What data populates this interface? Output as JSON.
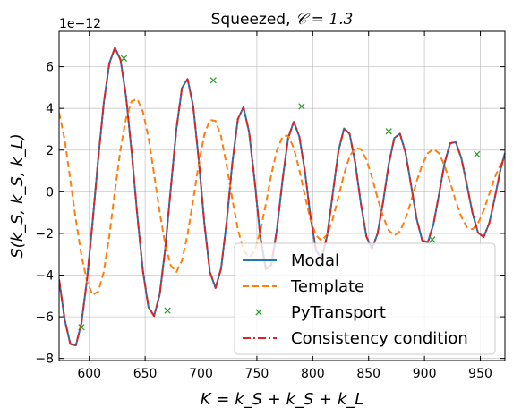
{
  "chart_data": {
    "type": "line",
    "title": "Squeezed, 𝒞 = 1.3",
    "title_prefix": "Squeezed, ",
    "title_math": "𝒞 = 1.3",
    "xlabel": "K = k_S + k_S + k_L",
    "ylabel": "S(k_S, k_S, k_L)",
    "y_offset_text": "1e−12",
    "xlim": [
      573,
      972
    ],
    "ylim": [
      -8.1,
      7.7
    ],
    "xticks": [
      600,
      650,
      700,
      750,
      800,
      850,
      900,
      950
    ],
    "yticks": [
      -8,
      -6,
      -4,
      -2,
      0,
      2,
      4,
      6
    ],
    "grid": true,
    "legend_position": "lower-right",
    "series": [
      {
        "name": "Modal",
        "color": "#1f77b4",
        "style": "solid",
        "x": [
          573,
          578,
          583,
          588,
          593,
          598,
          603,
          608,
          613,
          618,
          623,
          628,
          633,
          638,
          643,
          648,
          653,
          658,
          663,
          668,
          673,
          678,
          683,
          688,
          693,
          698,
          703,
          708,
          713,
          718,
          723,
          728,
          733,
          738,
          743,
          748,
          753,
          758,
          763,
          768,
          773,
          778,
          783,
          788,
          793,
          798,
          803,
          808,
          813,
          818,
          823,
          828,
          833,
          838,
          843,
          848,
          853,
          858,
          863,
          868,
          873,
          878,
          883,
          888,
          893,
          898,
          903,
          908,
          913,
          918,
          923,
          928,
          933,
          938,
          943,
          948,
          953,
          958,
          963,
          968,
          972
        ],
        "y": [
          -4.21,
          -6.13,
          -7.3,
          -7.38,
          -6.31,
          -4.22,
          -1.44,
          1.56,
          4.26,
          6.17,
          6.91,
          6.33,
          4.54,
          1.87,
          -1.12,
          -3.79,
          -5.54,
          -5.96,
          -4.95,
          -2.74,
          0.18,
          3.01,
          4.99,
          5.41,
          4.12,
          1.52,
          -1.51,
          -3.86,
          -4.62,
          -3.68,
          -1.43,
          1.36,
          3.49,
          4.06,
          2.88,
          0.54,
          -2.12,
          -3.72,
          -3.51,
          -1.78,
          0.58,
          2.58,
          3.36,
          2.65,
          0.97,
          -1.18,
          -2.84,
          -3.19,
          -2.08,
          -0.05,
          1.95,
          3.04,
          2.78,
          1.4,
          -0.54,
          -2.15,
          -2.73,
          -2.02,
          -0.48,
          1.32,
          2.58,
          2.79,
          1.89,
          0.32,
          -1.31,
          -2.34,
          -2.42,
          -1.57,
          -0.12,
          1.38,
          2.33,
          2.38,
          1.61,
          0.33,
          -1.03,
          -1.98,
          -2.17,
          -1.5,
          -0.27,
          1.06,
          1.86
        ]
      },
      {
        "name": "Template",
        "color": "#ff7f0e",
        "style": "dashed",
        "x": [
          573,
          578,
          583,
          588,
          593,
          598,
          603,
          608,
          613,
          618,
          623,
          628,
          633,
          638,
          643,
          648,
          653,
          658,
          663,
          668,
          673,
          678,
          683,
          688,
          693,
          698,
          703,
          708,
          713,
          718,
          723,
          728,
          733,
          738,
          743,
          748,
          753,
          758,
          763,
          768,
          773,
          778,
          783,
          788,
          793,
          798,
          803,
          808,
          813,
          818,
          823,
          828,
          833,
          838,
          843,
          848,
          853,
          858,
          863,
          868,
          873,
          878,
          883,
          888,
          893,
          898,
          903,
          908,
          913,
          918,
          923,
          928,
          933,
          938,
          943,
          948,
          953,
          958,
          963,
          968,
          972
        ],
        "y": [
          3.8,
          2.5,
          0.6,
          -1.35,
          -3.05,
          -4.3,
          -4.95,
          -4.8,
          -3.85,
          -2.1,
          0.05,
          2.05,
          3.55,
          4.35,
          4.45,
          3.85,
          2.6,
          0.85,
          -0.95,
          -2.55,
          -3.55,
          -3.85,
          -3.3,
          -2.05,
          -0.4,
          1.35,
          2.75,
          3.45,
          3.4,
          2.65,
          1.25,
          -0.35,
          -1.8,
          -2.8,
          -3.15,
          -2.85,
          -1.9,
          -0.6,
          0.85,
          2.0,
          2.65,
          2.7,
          2.1,
          1.05,
          -0.2,
          -1.35,
          -2.1,
          -2.35,
          -2.05,
          -1.3,
          -0.25,
          0.85,
          1.7,
          2.1,
          2.05,
          1.55,
          0.7,
          -0.3,
          -1.2,
          -1.85,
          -2.1,
          -1.9,
          -1.3,
          -0.45,
          0.5,
          1.3,
          1.85,
          2.05,
          1.85,
          1.25,
          0.45,
          -0.45,
          -1.2,
          -1.7,
          -1.8,
          -1.5,
          -0.9,
          -0.1,
          0.7,
          1.3,
          1.55
        ]
      },
      {
        "name": "PyTransport",
        "color": "#2ca02c",
        "style": "markers",
        "marker": "x",
        "x": [
          593,
          631,
          670,
          711,
          790,
          868,
          907,
          947
        ],
        "y": [
          -6.5,
          6.4,
          -5.7,
          5.35,
          4.1,
          2.9,
          -2.3,
          1.8
        ]
      },
      {
        "name": "Consistency condition",
        "color": "#d62728",
        "style": "dashdot",
        "x": [
          573,
          578,
          583,
          588,
          593,
          598,
          603,
          608,
          613,
          618,
          623,
          628,
          633,
          638,
          643,
          648,
          653,
          658,
          663,
          668,
          673,
          678,
          683,
          688,
          693,
          698,
          703,
          708,
          713,
          718,
          723,
          728,
          733,
          738,
          743,
          748,
          753,
          758,
          763,
          768,
          773,
          778,
          783,
          788,
          793,
          798,
          803,
          808,
          813,
          818,
          823,
          828,
          833,
          838,
          843,
          848,
          853,
          858,
          863,
          868,
          873,
          878,
          883,
          888,
          893,
          898,
          903,
          908,
          913,
          918,
          923,
          928,
          933,
          938,
          943,
          948,
          953,
          958,
          963,
          968,
          972
        ],
        "y": [
          -4.21,
          -6.13,
          -7.3,
          -7.38,
          -6.31,
          -4.22,
          -1.44,
          1.56,
          4.26,
          6.17,
          6.91,
          6.33,
          4.54,
          1.87,
          -1.12,
          -3.79,
          -5.54,
          -5.96,
          -4.95,
          -2.74,
          0.18,
          3.01,
          4.99,
          5.41,
          4.12,
          1.52,
          -1.51,
          -3.86,
          -4.62,
          -3.68,
          -1.43,
          1.36,
          3.49,
          4.06,
          2.88,
          0.54,
          -2.12,
          -3.72,
          -3.51,
          -1.78,
          0.58,
          2.58,
          3.36,
          2.65,
          0.97,
          -1.18,
          -2.84,
          -3.19,
          -2.08,
          -0.05,
          1.95,
          3.04,
          2.78,
          1.4,
          -0.54,
          -2.15,
          -2.73,
          -2.02,
          -0.48,
          1.32,
          2.58,
          2.79,
          1.89,
          0.32,
          -1.31,
          -2.34,
          -2.42,
          -1.57,
          -0.12,
          1.38,
          2.33,
          2.38,
          1.61,
          0.33,
          -1.03,
          -1.98,
          -2.17,
          -1.5,
          -0.27,
          1.06,
          1.86
        ]
      }
    ]
  }
}
